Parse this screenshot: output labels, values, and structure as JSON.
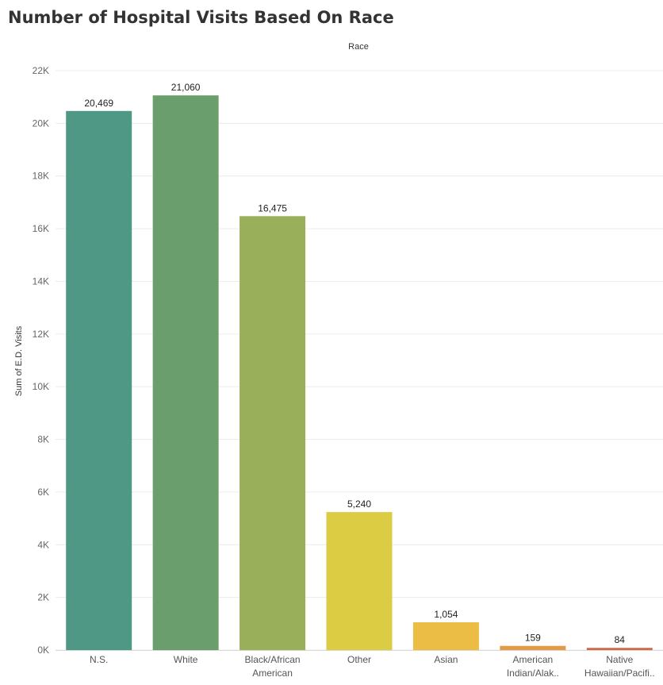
{
  "title": "Number of Hospital Visits Based On Race",
  "chart_data": {
    "type": "bar",
    "title": "Number of Hospital Visits Based On Race",
    "column_header": "Race",
    "ylabel": "Sum of E.D. Visits",
    "xlabel": "",
    "ylim": [
      0,
      22000
    ],
    "y_ticks": [
      0,
      2000,
      4000,
      6000,
      8000,
      10000,
      12000,
      14000,
      16000,
      18000,
      20000,
      22000
    ],
    "y_tick_labels": [
      "0K",
      "2K",
      "4K",
      "6K",
      "8K",
      "10K",
      "12K",
      "14K",
      "16K",
      "18K",
      "20K",
      "22K"
    ],
    "grid": true,
    "categories": [
      [
        "N.S."
      ],
      [
        "White"
      ],
      [
        "Black/African",
        "American"
      ],
      [
        "Other"
      ],
      [
        "Asian"
      ],
      [
        "American",
        "Indian/Alak.."
      ],
      [
        "Native",
        "Hawaiian/Pacifi.."
      ]
    ],
    "values": [
      20469,
      21060,
      16475,
      5240,
      1054,
      159,
      84
    ],
    "value_labels": [
      "20,469",
      "21,060",
      "16,475",
      "5,240",
      "1,054",
      "159",
      "84"
    ],
    "colors": [
      "#4f9886",
      "#6a9e6d",
      "#9aaf5a",
      "#dbcc44",
      "#ebbd45",
      "#e39a48",
      "#cd6a4a"
    ],
    "gridline_color": "#ececec"
  }
}
